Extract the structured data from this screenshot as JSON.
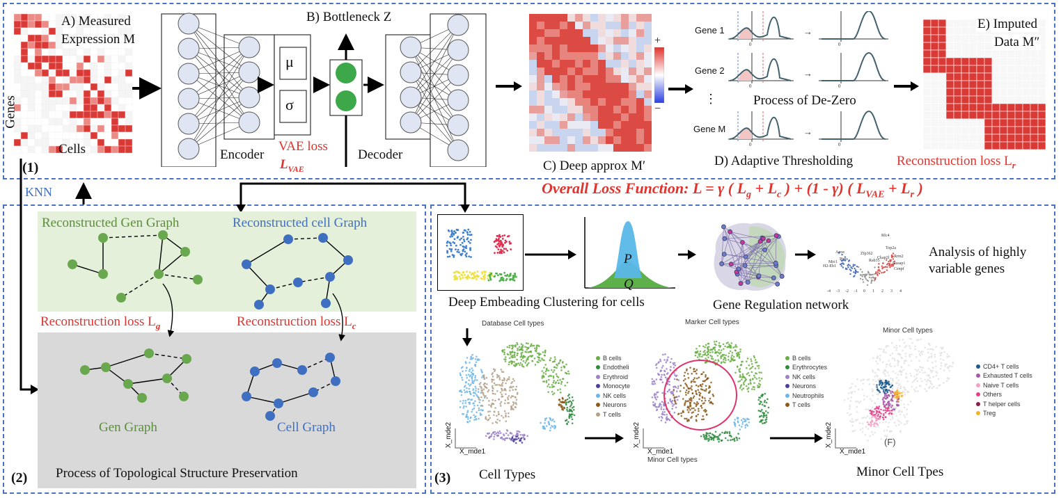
{
  "panel1": {
    "label": "(1)",
    "measured_a": "A) Measured",
    "measured_b": "Expression M",
    "genes": "Genes",
    "cells": "Cells",
    "encoder": "Encoder",
    "vae_loss": "VAE loss",
    "vae_sym": "L",
    "vae_sub": "VAE",
    "bottleneck": "B) Bottleneck Z",
    "mu": "μ",
    "sigma": "σ",
    "decoder": "Decoder",
    "deep_approx": "C) Deep approx M′",
    "colorbar_plus": "+",
    "colorbar_minus": "−",
    "gene1": "Gene 1",
    "gene2": "Gene 2",
    "dots": "⋮",
    "geneM": "Gene M",
    "zero": "0",
    "dezero": "Process of De-Zero",
    "adaptive": "D) Adaptive Thresholding",
    "imputed_a": "E) Imputed",
    "imputed_b": "Data M″",
    "recon_loss_r": "Reconstruction loss L",
    "recon_sub_r": "r"
  },
  "knn": "KNN",
  "overall_loss": "Overall Loss Function: L = γ ( L",
  "overall_loss_parts": [
    "g",
    "+ L",
    "c",
    ") + (1 - γ) ( L",
    "VAE",
    "+ L",
    "r",
    ")"
  ],
  "panel2": {
    "label": "(2)",
    "recon_gen_graph": "Reconstructed  Gen Graph",
    "recon_cell_graph": "Reconstructed  cell Graph",
    "recon_loss_g": "Reconstruction loss L",
    "sub_g": "g",
    "recon_loss_c": "Reconstruction loss L",
    "sub_c": "c",
    "gen_graph": "Gen Graph",
    "cell_graph": "Cell Graph",
    "process": "Process of  Topological Structure Preservation"
  },
  "panel3": {
    "label": "(3)",
    "clustering": "Deep Embeading Clustering  for cells",
    "p": "P",
    "q": "Q",
    "grn": "Gene Regulation network",
    "analysis_a": "Analysis of highly",
    "analysis_b": "variable genes",
    "volcano_labels": [
      "Rfc4",
      "Apoe",
      "Top2a",
      "Rrm2",
      "Zfp362",
      "Rab35",
      "Ckap2l",
      "Nusap1",
      "Cenpf",
      "Mrc1",
      "Ptms",
      "H2-Eb1"
    ],
    "volcano_ticks": [
      "-4",
      "-3",
      "-2",
      "-1",
      "0",
      "1",
      "2",
      "3",
      "4"
    ],
    "umap1_title": "Database Cell types",
    "umap1_legend": [
      "B cells",
      "Endotheli",
      "Erythroid",
      "Monocyte",
      "NK cells",
      "Neurons",
      "T cells"
    ],
    "umap1_colors": [
      "#6aae45",
      "#2f8a3e",
      "#9b83c8",
      "#4a3e9a",
      "#6fb6e6",
      "#8a5a1c",
      "#b4a088"
    ],
    "umap2_title": "Marker Cell types",
    "umap2_legend": [
      "B cells",
      "Erythrocytes",
      "NK cells",
      "Neurons",
      "Neutrophils",
      "T cells"
    ],
    "umap2_colors": [
      "#6aae45",
      "#2f8a3e",
      "#9b83c8",
      "#4a3e9a",
      "#6fb6e6",
      "#8a5a1c"
    ],
    "umap2_caption": "Minor Cell types",
    "umap3_title": "Minor Cell types",
    "umap3_legend": [
      "CD4+ T cells",
      "Exhausted T cells",
      "Naive T cells",
      "Others",
      "T helper cells",
      "Treg"
    ],
    "umap3_colors": [
      "#1d5a8a",
      "#a556a8",
      "#f2a0c8",
      "#e4408a",
      "#8a1c4a",
      "#f2b32a"
    ],
    "umap3_marker": "(F)",
    "axis_y": "X_mde2",
    "axis_x": "X_mde1",
    "cell_types": "Cell Types",
    "minor_cell": "Minor Cell Tpes"
  }
}
